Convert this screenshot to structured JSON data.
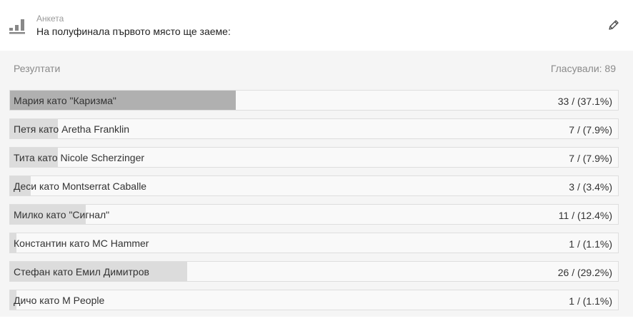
{
  "header": {
    "kicker": "Анкета",
    "question": "На полуфинала първото място ще заеме:",
    "icon": "bar-chart-icon",
    "edit_icon": "pencil-icon"
  },
  "results": {
    "label": "Резултати",
    "voted": "Гласували: 89",
    "options": [
      {
        "label": "Мария като \"Каризма\"",
        "count": "33 / (37.1%)",
        "percent": 37.1,
        "leading": true
      },
      {
        "label": "Петя като Aretha Franklin",
        "count": "7 / (7.9%)",
        "percent": 7.9
      },
      {
        "label": "Тита като Nicole Scherzinger",
        "count": "7 / (7.9%)",
        "percent": 7.9
      },
      {
        "label": "Деси като Montserrat Caballe",
        "count": "3 / (3.4%)",
        "percent": 3.4
      },
      {
        "label": "Милко като \"Сигнал\"",
        "count": "11 / (12.4%)",
        "percent": 12.4
      },
      {
        "label": "Константин като MC Hammer",
        "count": "1 / (1.1%)",
        "percent": 1.1
      },
      {
        "label": "Стефан като Емил Димитров",
        "count": "26 / (29.2%)",
        "percent": 29.2
      },
      {
        "label": "Дичо като M People",
        "count": "1 / (1.1%)",
        "percent": 1.1
      }
    ]
  },
  "colors": {
    "leading_bar": "#b0b0b0",
    "bar": "#dcdcdc",
    "panel": "#f5f5f5"
  }
}
